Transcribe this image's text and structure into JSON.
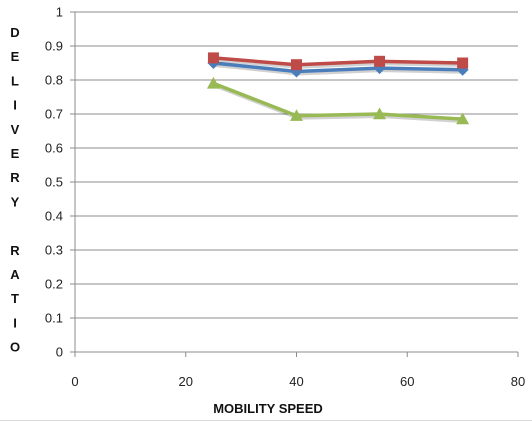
{
  "chart_data": {
    "type": "line",
    "title": "",
    "xlabel": "MOBILITY SPEED",
    "ylabel": "DELIVERY RATIO",
    "ylabel_vertical_lines": [
      "D",
      "E",
      "L",
      "I",
      "V",
      "E",
      "R",
      "Y",
      "",
      "R",
      "A",
      "T",
      "I",
      "O"
    ],
    "xlim": [
      0,
      80
    ],
    "ylim": [
      0,
      1
    ],
    "x_ticks": [
      0,
      20,
      40,
      60,
      80
    ],
    "y_ticks": [
      0,
      0.1,
      0.2,
      0.3,
      0.4,
      0.5,
      0.6,
      0.7,
      0.8,
      0.9,
      1
    ],
    "x_tick_labels": [
      "0",
      "20",
      "40",
      "60",
      "80"
    ],
    "y_tick_labels": [
      "0",
      "0.1",
      "0.2",
      "0.3",
      "0.4",
      "0.5",
      "0.6",
      "0.7",
      "0.8",
      "0.9",
      "1"
    ],
    "grid": "horizontal",
    "legend": "none",
    "x": [
      25,
      40,
      55,
      70
    ],
    "series": [
      {
        "values": [
          0.85,
          0.825,
          0.835,
          0.83
        ],
        "color": "#4a7ebb",
        "marker": "diamond"
      },
      {
        "values": [
          0.865,
          0.845,
          0.855,
          0.85
        ],
        "color": "#be4b48",
        "marker": "square"
      },
      {
        "values": [
          0.79,
          0.695,
          0.7,
          0.685
        ],
        "color": "#98b954",
        "marker": "triangle"
      }
    ]
  }
}
